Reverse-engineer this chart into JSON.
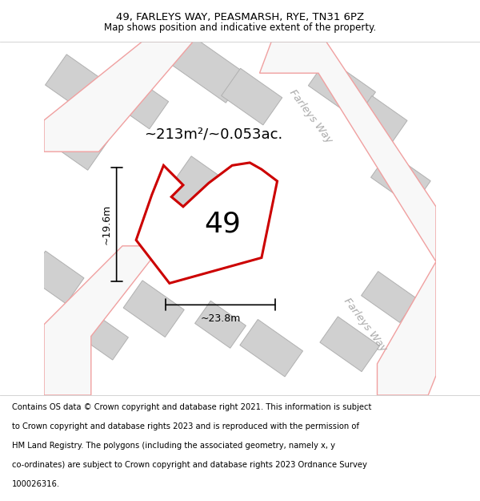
{
  "title_line1": "49, FARLEYS WAY, PEASMARSH, RYE, TN31 6PZ",
  "title_line2": "Map shows position and indicative extent of the property.",
  "footer_text": "Contains OS data © Crown copyright and database right 2021. This information is subject to Crown copyright and database rights 2023 and is reproduced with the permission of HM Land Registry. The polygons (including the associated geometry, namely x, y co-ordinates) are subject to Crown copyright and database rights 2023 Ordnance Survey 100026316.",
  "area_label": "~213m²/~0.053ac.",
  "number_label": "49",
  "width_label": "~23.8m",
  "height_label": "~19.6m",
  "road_label_1": "Farleys Way",
  "road_label_2": "Farleys Way",
  "map_bg": "#ebebeb",
  "building_fill": "#d0d0d0",
  "building_edge": "#b0b0b0",
  "road_fill_color": "#f8f8f8",
  "road_outline_color": "#f0a0a0",
  "plot_outline_color": "#cc0000",
  "plot_fill_color": "#ffffff",
  "title_fontsize": 9.5,
  "subtitle_fontsize": 8.5,
  "footer_fontsize": 7.2,
  "area_fontsize": 13,
  "number_fontsize": 26,
  "road_label_fontsize": 9.5,
  "dim_label_fontsize": 9
}
